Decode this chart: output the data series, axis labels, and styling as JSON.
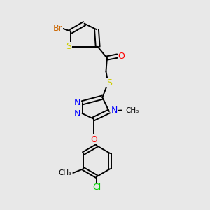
{
  "background_color": "#e8e8e8",
  "bond_color": "#000000",
  "figsize": [
    3.0,
    3.0
  ],
  "dpi": 100,
  "colors": {
    "Br": "#cc6600",
    "S": "#cccc00",
    "O": "#ff0000",
    "N": "#0000ff",
    "Cl": "#00cc00",
    "C": "#000000"
  }
}
